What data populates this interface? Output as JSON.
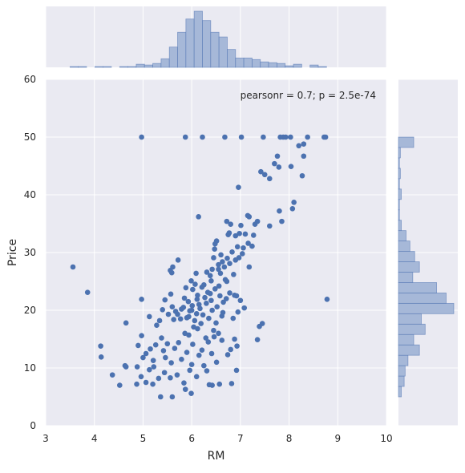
{
  "chart_data": {
    "type": "scatter",
    "xlabel": "RM",
    "ylabel": "Price",
    "xlim": [
      3,
      10
    ],
    "ylim": [
      0,
      60
    ],
    "xticks": [
      "3",
      "4",
      "5",
      "6",
      "7",
      "8",
      "9",
      "10"
    ],
    "yticks": [
      "0",
      "10",
      "20",
      "30",
      "40",
      "50",
      "60"
    ],
    "annotation": "pearsonr = 0.7; p = 2.5e-74",
    "grid": true,
    "marginal_histograms": true,
    "colors": {
      "points": "#4c72b0",
      "hist_fill": "#a6b8d8",
      "hist_edge": "#4c72b0",
      "background": "#eaeaf2",
      "grid": "#ffffff"
    },
    "points": [
      [
        4.97,
        50
      ],
      [
        5.87,
        50
      ],
      [
        6.22,
        50
      ],
      [
        6.68,
        50
      ],
      [
        7.02,
        50
      ],
      [
        7.47,
        50
      ],
      [
        7.82,
        50
      ],
      [
        7.88,
        50
      ],
      [
        7.93,
        50
      ],
      [
        8.03,
        50
      ],
      [
        8.38,
        50
      ],
      [
        8.72,
        50
      ],
      [
        8.75,
        50
      ],
      [
        8.3,
        48.8
      ],
      [
        8.2,
        48.5
      ],
      [
        8.3,
        46.7
      ],
      [
        7.76,
        46.7
      ],
      [
        7.7,
        45.4
      ],
      [
        8.04,
        44.9
      ],
      [
        7.79,
        44.8
      ],
      [
        8.27,
        43.3
      ],
      [
        7.42,
        44
      ],
      [
        7.5,
        43.5
      ],
      [
        7.6,
        42.8
      ],
      [
        6.96,
        41.3
      ],
      [
        8.1,
        38.7
      ],
      [
        8.07,
        37.6
      ],
      [
        7.8,
        37.2
      ],
      [
        7.15,
        36.4
      ],
      [
        7.35,
        35.4
      ],
      [
        7.18,
        36.2
      ],
      [
        7.3,
        34.9
      ],
      [
        7.85,
        35.4
      ],
      [
        7.6,
        34.6
      ],
      [
        6.77,
        33.4
      ],
      [
        7.1,
        33.2
      ],
      [
        6.9,
        32.9
      ],
      [
        6.14,
        36.2
      ],
      [
        6.72,
        35.4
      ],
      [
        6.8,
        34.9
      ],
      [
        7.01,
        34.7
      ],
      [
        6.98,
        33.3
      ],
      [
        6.75,
        33.1
      ],
      [
        7.27,
        33.0
      ],
      [
        6.51,
        32.0
      ],
      [
        7.16,
        31.6
      ],
      [
        6.48,
        31.5
      ],
      [
        7.24,
        31.1
      ],
      [
        6.94,
        31.0
      ],
      [
        6.83,
        30.1
      ],
      [
        7.04,
        29.8
      ],
      [
        6.6,
        29.6
      ],
      [
        6.45,
        29.1
      ],
      [
        6.73,
        29.0
      ],
      [
        6.9,
        28.7
      ],
      [
        6.63,
        28.4
      ],
      [
        6.78,
        28.1
      ],
      [
        6.55,
        27.9
      ],
      [
        7.18,
        27.5
      ],
      [
        6.42,
        27.1
      ],
      [
        6.31,
        26.6
      ],
      [
        6.59,
        26.4
      ],
      [
        6.86,
        26.2
      ],
      [
        6.72,
        25.0
      ],
      [
        6.4,
        25.1
      ],
      [
        6.69,
        25.3
      ],
      [
        5.61,
        27.5
      ],
      [
        5.99,
        25.1
      ],
      [
        5.59,
        26.5
      ],
      [
        5.72,
        28.7
      ],
      [
        6.12,
        22.6
      ],
      [
        6.21,
        24.0
      ],
      [
        6.48,
        23.7
      ],
      [
        6.38,
        22.9
      ],
      [
        6.58,
        22.5
      ],
      [
        6.11,
        21.9
      ],
      [
        6.25,
        24.4
      ],
      [
        6.02,
        23.6
      ],
      [
        5.85,
        22.1
      ],
      [
        5.93,
        21.5
      ],
      [
        6.01,
        20.8
      ],
      [
        6.17,
        20.3
      ],
      [
        6.3,
        21.2
      ],
      [
        6.42,
        20.0
      ],
      [
        6.1,
        19.4
      ],
      [
        5.96,
        19.9
      ],
      [
        5.83,
        20.5
      ],
      [
        5.9,
        18.7
      ],
      [
        6.06,
        18.2
      ],
      [
        6.23,
        19.2
      ],
      [
        6.35,
        18.6
      ],
      [
        5.71,
        19.3
      ],
      [
        5.79,
        20.2
      ],
      [
        5.67,
        19.8
      ],
      [
        6.4,
        21.7
      ],
      [
        6.52,
        20.6
      ],
      [
        6.65,
        21.4
      ],
      [
        6.71,
        22.0
      ],
      [
        6.56,
        24.2
      ],
      [
        6.33,
        23.1
      ],
      [
        6.07,
        24.5
      ],
      [
        5.88,
        23.9
      ],
      [
        6.0,
        20.0
      ],
      [
        6.15,
        21.0
      ],
      [
        6.27,
        22.2
      ],
      [
        5.94,
        18.9
      ],
      [
        6.19,
        17.7
      ],
      [
        5.77,
        18.5
      ],
      [
        6.04,
        17.1
      ],
      [
        6.12,
        16.8
      ],
      [
        6.45,
        16.5
      ],
      [
        6.29,
        15.2
      ],
      [
        5.86,
        16.0
      ],
      [
        5.6,
        20.6
      ],
      [
        5.45,
        21.8
      ],
      [
        5.52,
        19.3
      ],
      [
        5.63,
        18.4
      ],
      [
        5.4,
        20.1
      ],
      [
        5.34,
        18.2
      ],
      [
        5.28,
        17.4
      ],
      [
        5.13,
        18.9
      ],
      [
        5.57,
        22.8
      ],
      [
        6.78,
        23.0
      ],
      [
        6.88,
        22.6
      ],
      [
        7.0,
        21.7
      ],
      [
        6.95,
        19.7
      ],
      [
        7.08,
        20.4
      ],
      [
        6.85,
        18.6
      ],
      [
        6.62,
        19.0
      ],
      [
        6.5,
        17.8
      ],
      [
        5.73,
        14.4
      ],
      [
        6.02,
        14.1
      ],
      [
        6.34,
        14.5
      ],
      [
        6.21,
        13.1
      ],
      [
        5.9,
        12.7
      ],
      [
        6.15,
        12.2
      ],
      [
        6.41,
        12.5
      ],
      [
        5.65,
        13.4
      ],
      [
        5.5,
        14.2
      ],
      [
        5.38,
        15.2
      ],
      [
        5.42,
        13.0
      ],
      [
        5.26,
        14.0
      ],
      [
        5.15,
        13.3
      ],
      [
        5.06,
        12.5
      ],
      [
        4.97,
        15.6
      ],
      [
        4.9,
        13.9
      ],
      [
        5.0,
        11.8
      ],
      [
        5.21,
        11.3
      ],
      [
        5.46,
        11.8
      ],
      [
        5.58,
        10.9
      ],
      [
        5.79,
        11.5
      ],
      [
        6.0,
        10.6
      ],
      [
        6.25,
        10.4
      ],
      [
        6.51,
        11.0
      ],
      [
        6.74,
        12.3
      ],
      [
        6.8,
        13.2
      ],
      [
        6.62,
        14.8
      ],
      [
        6.93,
        13.8
      ],
      [
        6.88,
        15.0
      ],
      [
        6.55,
        16.0
      ],
      [
        7.35,
        14.9
      ],
      [
        7.45,
        17.7
      ],
      [
        7.39,
        17.2
      ],
      [
        4.13,
        13.8
      ],
      [
        4.14,
        11.9
      ],
      [
        4.37,
        8.8
      ],
      [
        4.52,
        7.0
      ],
      [
        4.63,
        10.4
      ],
      [
        4.88,
        10.2
      ],
      [
        4.96,
        8.5
      ],
      [
        5.06,
        7.5
      ],
      [
        5.2,
        7.2
      ],
      [
        5.32,
        8.2
      ],
      [
        5.44,
        9.2
      ],
      [
        5.56,
        8.3
      ],
      [
        5.7,
        8.8
      ],
      [
        5.84,
        7.4
      ],
      [
        5.96,
        9.6
      ],
      [
        6.1,
        8.5
      ],
      [
        6.31,
        9.5
      ],
      [
        6.42,
        7.0
      ],
      [
        6.57,
        7.2
      ],
      [
        6.82,
        7.3
      ],
      [
        6.92,
        9.6
      ],
      [
        5.36,
        5.0
      ],
      [
        5.6,
        5.0
      ],
      [
        5.87,
        6.3
      ],
      [
        5.99,
        5.6
      ],
      [
        6.36,
        7.1
      ],
      [
        5.22,
        10.2
      ],
      [
        5.13,
        9.7
      ],
      [
        4.87,
        7.2
      ],
      [
        4.65,
        10.2
      ],
      [
        3.56,
        27.5
      ],
      [
        3.86,
        23.1
      ],
      [
        4.97,
        21.9
      ],
      [
        4.65,
        17.8
      ],
      [
        8.78,
        21.9
      ],
      [
        6.97,
        29.1
      ],
      [
        7.06,
        30.8
      ],
      [
        6.47,
        30.6
      ],
      [
        6.55,
        27.1
      ],
      [
        6.92,
        22.5
      ],
      [
        6.64,
        19.6
      ],
      [
        6.46,
        15.4
      ],
      [
        5.94,
        15.7
      ],
      [
        6.09,
        26.4
      ],
      [
        5.56,
        26.9
      ],
      [
        6.38,
        26.0
      ],
      [
        6.67,
        27.5
      ]
    ],
    "x_hist": {
      "bin_edges": [
        3.5,
        3.67,
        3.84,
        4.01,
        4.18,
        4.35,
        4.52,
        4.69,
        4.86,
        5.03,
        5.2,
        5.37,
        5.54,
        5.71,
        5.88,
        6.05,
        6.22,
        6.39,
        6.56,
        6.73,
        6.9,
        7.07,
        7.24,
        7.41,
        7.58,
        7.75,
        7.92,
        8.09,
        8.26,
        8.43,
        8.6,
        8.77
      ],
      "counts": [
        1,
        1,
        0,
        1,
        1,
        0,
        1,
        1,
        4,
        3,
        5,
        11,
        26,
        45,
        62,
        72,
        60,
        45,
        39,
        23,
        12,
        12,
        10,
        7,
        6,
        5,
        2,
        4,
        0,
        3,
        1
      ]
    },
    "y_hist": {
      "bin_edges": [
        5,
        6.8,
        8.6,
        10.4,
        12.2,
        14,
        15.8,
        17.6,
        19.4,
        21.2,
        23,
        24.8,
        26.6,
        28.4,
        30.2,
        32,
        33.8,
        35.6,
        37.4,
        39.2,
        41,
        42.8,
        44.6,
        46.4,
        48.2,
        50
      ],
      "counts": [
        3,
        6,
        7,
        10,
        22,
        16,
        28,
        24,
        58,
        50,
        40,
        15,
        22,
        17,
        12,
        8,
        3,
        1,
        1,
        3,
        1,
        2,
        1,
        2,
        16
      ]
    }
  }
}
